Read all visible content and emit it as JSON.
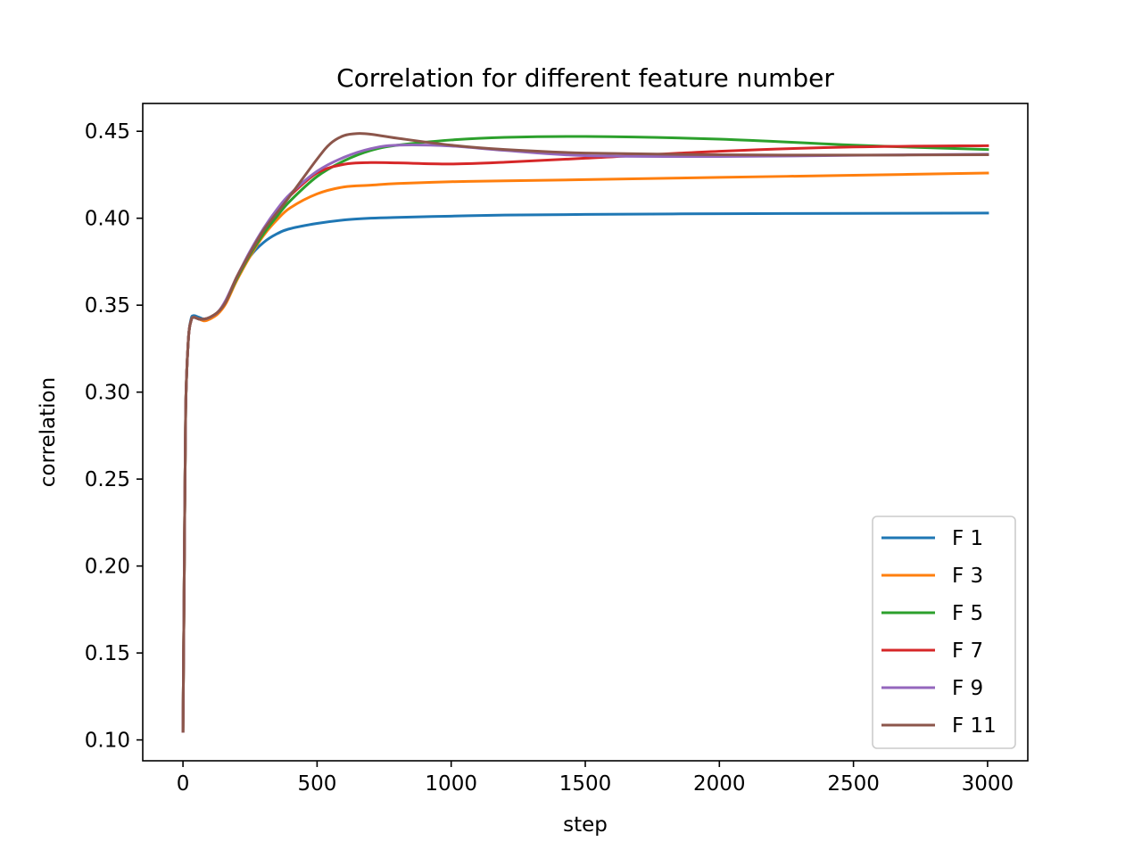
{
  "chart_data": {
    "type": "line",
    "title": "Correlation for different feature number",
    "xlabel": "step",
    "ylabel": "correlation",
    "xlim": [
      -150,
      3150
    ],
    "ylim": [
      0.088,
      0.466
    ],
    "xticks": [
      0,
      500,
      1000,
      1500,
      2000,
      2500,
      3000
    ],
    "xtick_labels": [
      "0",
      "500",
      "1000",
      "1500",
      "2000",
      "2500",
      "3000"
    ],
    "yticks": [
      0.1,
      0.15,
      0.2,
      0.25,
      0.3,
      0.35,
      0.4,
      0.45
    ],
    "ytick_labels": [
      "0.10",
      "0.15",
      "0.20",
      "0.25",
      "0.30",
      "0.35",
      "0.40",
      "0.45"
    ],
    "grid": false,
    "legend_position": "lower-right",
    "series": [
      {
        "name": "F 1",
        "color": "#1f77b4",
        "x": [
          0,
          5,
          10,
          20,
          30,
          40,
          60,
          80,
          100,
          130,
          160,
          200,
          250,
          300,
          350,
          400,
          500,
          600,
          700,
          800,
          1000,
          1200,
          1500,
          2000,
          2500,
          3000
        ],
        "y": [
          0.105,
          0.2,
          0.29,
          0.33,
          0.342,
          0.344,
          0.343,
          0.342,
          0.343,
          0.346,
          0.352,
          0.365,
          0.378,
          0.386,
          0.391,
          0.394,
          0.397,
          0.399,
          0.4,
          0.4005,
          0.4012,
          0.4018,
          0.4022,
          0.4026,
          0.4028,
          0.403
        ]
      },
      {
        "name": "F 3",
        "color": "#ff7f0e",
        "x": [
          0,
          5,
          10,
          20,
          30,
          40,
          60,
          80,
          100,
          130,
          160,
          200,
          250,
          300,
          350,
          400,
          500,
          600,
          700,
          800,
          1000,
          1200,
          1500,
          2000,
          2500,
          3000
        ],
        "y": [
          0.105,
          0.2,
          0.29,
          0.33,
          0.341,
          0.343,
          0.342,
          0.341,
          0.342,
          0.345,
          0.351,
          0.364,
          0.378,
          0.39,
          0.399,
          0.406,
          0.414,
          0.418,
          0.419,
          0.42,
          0.421,
          0.4215,
          0.4222,
          0.4235,
          0.4247,
          0.426
        ]
      },
      {
        "name": "F 5",
        "color": "#2ca02c",
        "x": [
          0,
          5,
          10,
          20,
          30,
          40,
          60,
          80,
          100,
          130,
          160,
          200,
          250,
          300,
          350,
          400,
          500,
          600,
          700,
          800,
          1000,
          1200,
          1500,
          2000,
          2500,
          3000
        ],
        "y": [
          0.105,
          0.2,
          0.29,
          0.33,
          0.341,
          0.343,
          0.342,
          0.342,
          0.343,
          0.346,
          0.352,
          0.365,
          0.379,
          0.391,
          0.401,
          0.41,
          0.424,
          0.433,
          0.439,
          0.442,
          0.445,
          0.4465,
          0.447,
          0.4455,
          0.442,
          0.4395
        ]
      },
      {
        "name": "F 7",
        "color": "#d62728",
        "x": [
          0,
          5,
          10,
          20,
          30,
          40,
          60,
          80,
          100,
          130,
          160,
          200,
          250,
          300,
          350,
          400,
          500,
          600,
          700,
          800,
          1000,
          1200,
          1500,
          2000,
          2500,
          3000
        ],
        "y": [
          0.105,
          0.2,
          0.29,
          0.33,
          0.341,
          0.343,
          0.342,
          0.342,
          0.343,
          0.346,
          0.352,
          0.366,
          0.38,
          0.393,
          0.404,
          0.413,
          0.426,
          0.431,
          0.432,
          0.4318,
          0.4312,
          0.4322,
          0.4345,
          0.4385,
          0.441,
          0.4417
        ]
      },
      {
        "name": "F 9",
        "color": "#9467bd",
        "x": [
          0,
          5,
          10,
          20,
          30,
          40,
          60,
          80,
          100,
          130,
          160,
          200,
          250,
          300,
          350,
          400,
          500,
          600,
          700,
          800,
          1000,
          1200,
          1500,
          2000,
          2500,
          3000
        ],
        "y": [
          0.105,
          0.2,
          0.29,
          0.33,
          0.341,
          0.343,
          0.342,
          0.342,
          0.343,
          0.346,
          0.353,
          0.366,
          0.381,
          0.394,
          0.405,
          0.414,
          0.427,
          0.435,
          0.44,
          0.442,
          0.4415,
          0.439,
          0.436,
          0.4355,
          0.4362,
          0.4368
        ]
      },
      {
        "name": "F 11",
        "color": "#8c564b",
        "x": [
          0,
          5,
          10,
          20,
          30,
          40,
          60,
          80,
          100,
          130,
          160,
          200,
          250,
          300,
          350,
          400,
          500,
          550,
          600,
          650,
          700,
          800,
          1000,
          1200,
          1500,
          2000,
          2500,
          3000
        ],
        "y": [
          0.105,
          0.2,
          0.29,
          0.33,
          0.341,
          0.343,
          0.342,
          0.342,
          0.343,
          0.346,
          0.352,
          0.366,
          0.38,
          0.393,
          0.403,
          0.413,
          0.434,
          0.443,
          0.4475,
          0.4487,
          0.4483,
          0.446,
          0.442,
          0.4395,
          0.4375,
          0.4365,
          0.4363,
          0.4365
        ]
      }
    ]
  }
}
